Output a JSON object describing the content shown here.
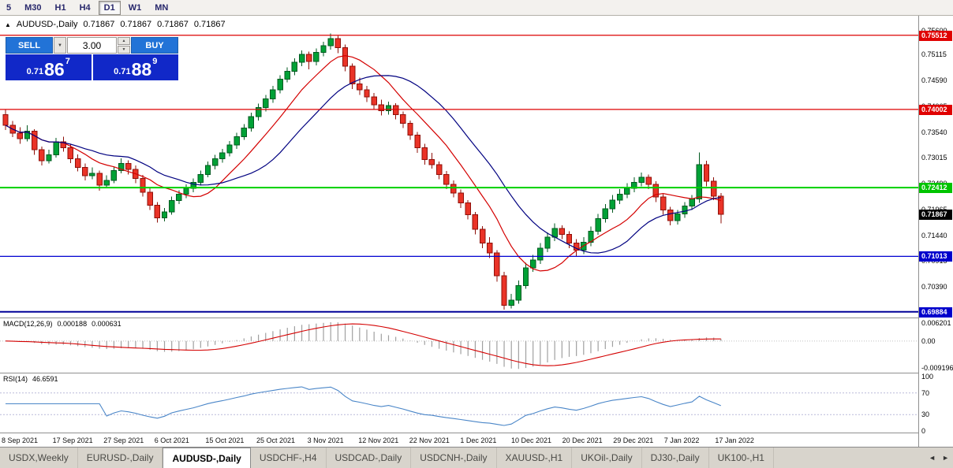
{
  "toolbar": {
    "periods": [
      {
        "label": "5",
        "active": false
      },
      {
        "label": "M30",
        "active": false
      },
      {
        "label": "H1",
        "active": false
      },
      {
        "label": "H4",
        "active": false
      },
      {
        "label": "D1",
        "active": true
      },
      {
        "label": "W1",
        "active": false
      },
      {
        "label": "MN",
        "active": false
      }
    ]
  },
  "icons": {
    "header_triangle": "▲",
    "dropdown_arrow": "▼",
    "spinner_up": "▲",
    "spinner_down": "▼"
  },
  "chart_header": {
    "symbol": "AUDUSD-,Daily",
    "open": "0.71867",
    "high": "0.71867",
    "low": "0.71867",
    "close": "0.71867"
  },
  "trade_panel": {
    "sell_label": "SELL",
    "buy_label": "BUY",
    "volume": "3.00",
    "sell": {
      "prefix": "0.71",
      "big": "86",
      "sup": "7"
    },
    "buy": {
      "prefix": "0.71",
      "big": "88",
      "sup": "9"
    }
  },
  "chart_data": {
    "type": "candlestick",
    "symbol": "AUDUSD-",
    "timeframe": "Daily",
    "colors": {
      "up": "#00a136",
      "up_border": "#005a20",
      "down": "#ea3327",
      "down_border": "#8f100a",
      "background": "#ffffff"
    },
    "candles": [
      [
        0.739,
        0.7401,
        0.7358,
        0.7368
      ],
      [
        0.7368,
        0.7377,
        0.7344,
        0.7352
      ],
      [
        0.7352,
        0.7364,
        0.733,
        0.7341
      ],
      [
        0.7341,
        0.7368,
        0.7335,
        0.7356
      ],
      [
        0.7356,
        0.736,
        0.7308,
        0.7318
      ],
      [
        0.7318,
        0.7325,
        0.7286,
        0.7296
      ],
      [
        0.7296,
        0.7318,
        0.729,
        0.7308
      ],
      [
        0.7308,
        0.7342,
        0.7302,
        0.7334
      ],
      [
        0.7334,
        0.7345,
        0.7314,
        0.7322
      ],
      [
        0.7322,
        0.733,
        0.7291,
        0.73
      ],
      [
        0.73,
        0.7309,
        0.7274,
        0.7282
      ],
      [
        0.7282,
        0.729,
        0.7256,
        0.7265
      ],
      [
        0.7265,
        0.7282,
        0.7258,
        0.727
      ],
      [
        0.727,
        0.7276,
        0.7235,
        0.7246
      ],
      [
        0.7246,
        0.7266,
        0.724,
        0.7256
      ],
      [
        0.7256,
        0.7284,
        0.725,
        0.7276
      ],
      [
        0.7276,
        0.7301,
        0.727,
        0.729
      ],
      [
        0.729,
        0.7297,
        0.7268,
        0.7278
      ],
      [
        0.7278,
        0.7286,
        0.725,
        0.726
      ],
      [
        0.726,
        0.7267,
        0.7223,
        0.7232
      ],
      [
        0.7232,
        0.724,
        0.7196,
        0.7205
      ],
      [
        0.7205,
        0.7212,
        0.717,
        0.718
      ],
      [
        0.718,
        0.72,
        0.7172,
        0.7192
      ],
      [
        0.7192,
        0.7223,
        0.7186,
        0.7215
      ],
      [
        0.7215,
        0.7236,
        0.7208,
        0.7228
      ],
      [
        0.7228,
        0.7248,
        0.722,
        0.724
      ],
      [
        0.724,
        0.726,
        0.7232,
        0.7252
      ],
      [
        0.7252,
        0.7276,
        0.7245,
        0.7268
      ],
      [
        0.7268,
        0.7294,
        0.7262,
        0.7286
      ],
      [
        0.7286,
        0.7308,
        0.7278,
        0.73
      ],
      [
        0.73,
        0.732,
        0.7292,
        0.7312
      ],
      [
        0.7312,
        0.7336,
        0.7305,
        0.7328
      ],
      [
        0.7328,
        0.7353,
        0.732,
        0.7345
      ],
      [
        0.7345,
        0.737,
        0.7338,
        0.7362
      ],
      [
        0.7362,
        0.7394,
        0.7355,
        0.7386
      ],
      [
        0.7386,
        0.7412,
        0.7378,
        0.7404
      ],
      [
        0.7404,
        0.743,
        0.7396,
        0.7422
      ],
      [
        0.7422,
        0.7448,
        0.7414,
        0.744
      ],
      [
        0.744,
        0.747,
        0.7433,
        0.7462
      ],
      [
        0.7462,
        0.7486,
        0.7455,
        0.7478
      ],
      [
        0.7478,
        0.7504,
        0.747,
        0.7496
      ],
      [
        0.7496,
        0.752,
        0.7488,
        0.7512
      ],
      [
        0.7512,
        0.7518,
        0.7482,
        0.7498
      ],
      [
        0.7498,
        0.7524,
        0.749,
        0.7516
      ],
      [
        0.7516,
        0.7538,
        0.7508,
        0.753
      ],
      [
        0.753,
        0.7555,
        0.7522,
        0.7544
      ],
      [
        0.7544,
        0.755,
        0.7515,
        0.7526
      ],
      [
        0.7526,
        0.7532,
        0.7478,
        0.7488
      ],
      [
        0.7488,
        0.7494,
        0.7442,
        0.7452
      ],
      [
        0.7452,
        0.7465,
        0.743,
        0.744
      ],
      [
        0.744,
        0.7448,
        0.7415,
        0.7426
      ],
      [
        0.7426,
        0.7434,
        0.74,
        0.741
      ],
      [
        0.741,
        0.742,
        0.7388,
        0.7398
      ],
      [
        0.7398,
        0.7416,
        0.739,
        0.7408
      ],
      [
        0.7408,
        0.7413,
        0.738,
        0.739
      ],
      [
        0.739,
        0.7396,
        0.7362,
        0.7372
      ],
      [
        0.7372,
        0.7378,
        0.7338,
        0.7348
      ],
      [
        0.7348,
        0.7354,
        0.7312,
        0.7322
      ],
      [
        0.7322,
        0.733,
        0.7288,
        0.7298
      ],
      [
        0.7298,
        0.7312,
        0.728,
        0.7288
      ],
      [
        0.7288,
        0.7294,
        0.7258,
        0.7268
      ],
      [
        0.7268,
        0.7275,
        0.7238,
        0.7248
      ],
      [
        0.7248,
        0.7256,
        0.7221,
        0.723
      ],
      [
        0.723,
        0.7237,
        0.72,
        0.721
      ],
      [
        0.721,
        0.7216,
        0.7176,
        0.7186
      ],
      [
        0.7186,
        0.7192,
        0.7146,
        0.7156
      ],
      [
        0.7156,
        0.7163,
        0.7118,
        0.7128
      ],
      [
        0.7128,
        0.714,
        0.7098,
        0.7108
      ],
      [
        0.7108,
        0.7114,
        0.705,
        0.7062
      ],
      [
        0.7062,
        0.707,
        0.6993,
        0.7002
      ],
      [
        0.7002,
        0.7025,
        0.6995,
        0.7012
      ],
      [
        0.7012,
        0.7052,
        0.7005,
        0.7042
      ],
      [
        0.7042,
        0.7088,
        0.7035,
        0.7078
      ],
      [
        0.7078,
        0.7104,
        0.707,
        0.7094
      ],
      [
        0.7094,
        0.7128,
        0.7086,
        0.7118
      ],
      [
        0.7118,
        0.715,
        0.711,
        0.714
      ],
      [
        0.714,
        0.7168,
        0.7132,
        0.7158
      ],
      [
        0.7158,
        0.7164,
        0.7136,
        0.7146
      ],
      [
        0.7146,
        0.7152,
        0.7118,
        0.7128
      ],
      [
        0.7128,
        0.7136,
        0.71,
        0.7114
      ],
      [
        0.7114,
        0.714,
        0.7106,
        0.713
      ],
      [
        0.713,
        0.7162,
        0.7122,
        0.7152
      ],
      [
        0.7152,
        0.7188,
        0.7145,
        0.7178
      ],
      [
        0.7178,
        0.7208,
        0.717,
        0.7198
      ],
      [
        0.7198,
        0.7226,
        0.719,
        0.7216
      ],
      [
        0.7216,
        0.7238,
        0.7208,
        0.7228
      ],
      [
        0.7228,
        0.725,
        0.722,
        0.724
      ],
      [
        0.724,
        0.7262,
        0.7232,
        0.7252
      ],
      [
        0.7252,
        0.7272,
        0.7244,
        0.7262
      ],
      [
        0.7262,
        0.7268,
        0.7238,
        0.7248
      ],
      [
        0.7248,
        0.7254,
        0.7212,
        0.7222
      ],
      [
        0.7222,
        0.7228,
        0.7186,
        0.7196
      ],
      [
        0.7196,
        0.7202,
        0.7164,
        0.7174
      ],
      [
        0.7174,
        0.7196,
        0.7166,
        0.7188
      ],
      [
        0.7188,
        0.7212,
        0.718,
        0.7204
      ],
      [
        0.7204,
        0.7226,
        0.7196,
        0.7218
      ],
      [
        0.7218,
        0.7313,
        0.721,
        0.7288
      ],
      [
        0.7288,
        0.7296,
        0.7244,
        0.7254
      ],
      [
        0.7254,
        0.7262,
        0.7216,
        0.7224
      ],
      [
        0.7224,
        0.723,
        0.7168,
        0.7187
      ]
    ],
    "date_labels": [
      "8 Sep 2021",
      "17 Sep 2021",
      "27 Sep 2021",
      "6 Oct 2021",
      "15 Oct 2021",
      "25 Oct 2021",
      "3 Nov 2021",
      "12 Nov 2021",
      "22 Nov 2021",
      "1 Dec 2021",
      "10 Dec 2021",
      "20 Dec 2021",
      "29 Dec 2021",
      "7 Jan 2022",
      "17 Jan 2022"
    ],
    "price_axis_labels": [
      "0.75600",
      "0.75115",
      "0.74590",
      "0.74065",
      "0.73540",
      "0.73015",
      "0.72490",
      "0.71965",
      "0.71440",
      "0.70915",
      "0.70390",
      "0.69865"
    ],
    "price_badges": [
      {
        "value": 0.75512,
        "text": "0.75512",
        "color": "#e00000",
        "name": "resistance-level-badge-1"
      },
      {
        "value": 0.74002,
        "text": "0.74002",
        "color": "#e00000",
        "name": "resistance-level-badge-2"
      },
      {
        "value": 0.72412,
        "text": "0.72412",
        "color": "#00c400",
        "name": "green-level-badge"
      },
      {
        "value": 0.71867,
        "text": "0.71867",
        "color": "#000000",
        "name": "current-price-badge"
      },
      {
        "value": 0.71013,
        "text": "0.71013",
        "color": "#0000cc",
        "name": "blue-level-badge"
      },
      {
        "value": 0.69884,
        "text": "0.69884",
        "color": "#0000cc",
        "name": "navy-level-badge"
      }
    ],
    "levels": [
      {
        "price": 0.75512,
        "color": "#dd0000",
        "width": 1.2
      },
      {
        "price": 0.74002,
        "color": "#dd0000",
        "width": 1.2
      },
      {
        "price": 0.72412,
        "color": "#00d000",
        "width": 2
      },
      {
        "price": 0.71013,
        "color": "#0000d0",
        "width": 1.2
      },
      {
        "price": 0.69884,
        "color": "#000098",
        "width": 2
      }
    ],
    "current_price": {
      "value": 0.71867,
      "label": "0.71867"
    },
    "moving_averages": [
      {
        "name": "fast-ma",
        "period": 9,
        "color": "#d40000"
      },
      {
        "name": "slow-ma",
        "period": 18,
        "color": "#000080"
      }
    ],
    "macd": {
      "label": "MACD(12,26,9)",
      "value": "0.000188",
      "signal": "0.000631",
      "fast": 12,
      "slow": 26,
      "signal_period": 9,
      "axis": [
        "0.006201",
        "0.00",
        "-0.009196"
      ],
      "hist_color": "#a0a0a0",
      "line_color": "#d40000"
    },
    "rsi": {
      "label": "RSI(14)",
      "value": "46.6591",
      "period": 14,
      "axis": [
        "100",
        "70",
        "30",
        "0"
      ],
      "levels": [
        70,
        30
      ],
      "color": "#4a86c8"
    }
  },
  "tabs": {
    "items": [
      {
        "label": "USDX,Weekly",
        "active": false
      },
      {
        "label": "EURUSD-,Daily",
        "active": false
      },
      {
        "label": "AUDUSD-,Daily",
        "active": true
      },
      {
        "label": "USDCHF-,H4",
        "active": false
      },
      {
        "label": "USDCAD-,Daily",
        "active": false
      },
      {
        "label": "USDCNH-,Daily",
        "active": false
      },
      {
        "label": "XAUUSD-,H1",
        "active": false
      },
      {
        "label": "UKOil-,Daily",
        "active": false
      },
      {
        "label": "DJ30-,Daily",
        "active": false
      },
      {
        "label": "UK100-,H1",
        "active": false
      }
    ],
    "scroll_left": "◄",
    "scroll_right": "►"
  }
}
